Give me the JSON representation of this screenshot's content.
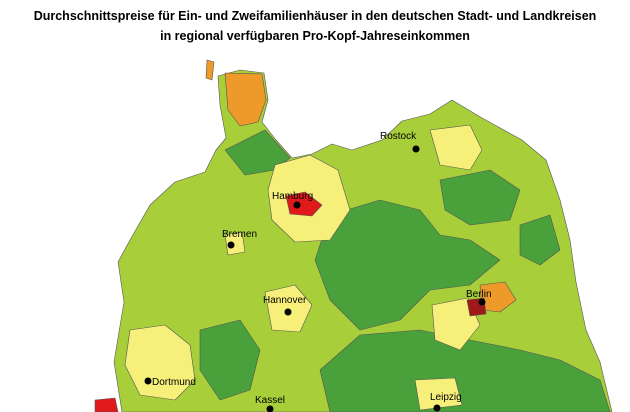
{
  "title": [
    "Durchschnittspreise für Ein- und Zweifamilienhäuser in den deutschen Stadt- und Landkreisen",
    "in regional verfügbaren Pro-Kopf-Jahreseinkommen"
  ],
  "cities": [
    "Rostock",
    "Hamburg",
    "Bremen",
    "Hannover",
    "Berlin",
    "Dortmund",
    "Kassel",
    "Leipzig"
  ]
}
